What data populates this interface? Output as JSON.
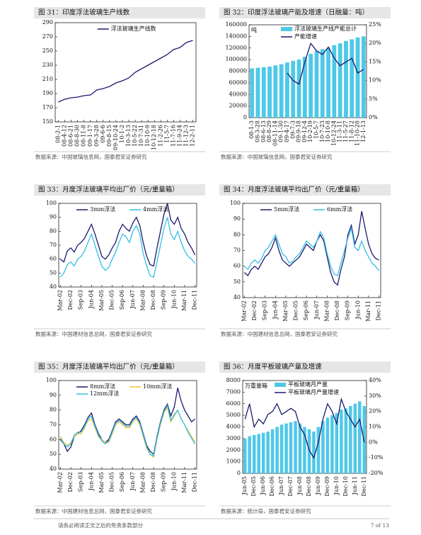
{
  "chart_data": [
    {
      "type": "line",
      "title": "图 31：印度浮法玻璃生产线数",
      "source": "数据来源：中国玻璃信息网，国泰君安证券研究",
      "legend": "top",
      "categories": [
        "08-2-1",
        "08-4-12",
        "08-6-21",
        "08-8-30",
        "08-11-8",
        "09-1-17",
        "09-3-28",
        "09-6-6",
        "09-8-15",
        "09-10-24",
        "10-1-2",
        "10-3-13",
        "10-5-22",
        "10-7-31",
        "10-10-9",
        "10-12-18",
        "11-2-26",
        "11-5-7",
        "11-7-16",
        "11-9-24",
        "11-12-3",
        "12-2-11"
      ],
      "series": [
        {
          "name": "浮法玻璃生产线数",
          "color": "#1a1a6e",
          "type": "line",
          "values": [
            178,
            182,
            184,
            185,
            187,
            188,
            195,
            197,
            200,
            205,
            208,
            212,
            220,
            225,
            230,
            235,
            240,
            245,
            252,
            255,
            262,
            265
          ]
        }
      ],
      "ylim": [
        150,
        290
      ],
      "yticks": [
        150,
        170,
        190,
        210,
        230,
        250,
        270,
        290
      ]
    },
    {
      "type": "combo",
      "title": "图 32：印度浮法玻璃产能及增速（日融量：吨）",
      "source": "数据来源：中国玻璃信息网，国泰君安证券研究",
      "legend": "top-left",
      "annotation": "吨",
      "categories": [
        "08-1-3",
        "08-3-28",
        "08-6-13",
        "08-8-29",
        "08-11-14",
        "09-1-30",
        "09-4-17",
        "09-7-3",
        "09-9-18",
        "09-12-4",
        "10-2-19",
        "10-5-7",
        "10-7-23",
        "10-10-8",
        "10-12-24",
        "11-3-11",
        "11-5-27",
        "11-8-12",
        "11-10-28",
        "12-1-13"
      ],
      "series": [
        {
          "name": "浮法玻璃生产线产能总计",
          "color": "#4fc8e8",
          "type": "bar",
          "values": [
            85000,
            86000,
            87000,
            88000,
            90000,
            92000,
            95000,
            98000,
            100000,
            105000,
            110000,
            115000,
            118000,
            120000,
            125000,
            128000,
            132000,
            135000,
            138000,
            140000
          ]
        },
        {
          "name": "产能增速",
          "color": "#1a1a6e",
          "type": "line",
          "axis": "y2",
          "values": [
            null,
            null,
            null,
            null,
            null,
            null,
            12,
            10,
            9,
            15,
            20,
            18,
            17,
            19,
            16,
            14,
            15,
            16,
            12,
            13
          ]
        }
      ],
      "ylim": [
        0,
        160000
      ],
      "yticks": [
        0,
        20000,
        40000,
        60000,
        80000,
        100000,
        120000,
        140000,
        160000
      ],
      "y2lim": [
        0,
        25
      ],
      "y2ticks": [
        {
          "value": 0,
          "label": "0%"
        },
        {
          "value": 5,
          "label": "5%"
        },
        {
          "value": 10,
          "label": "10%"
        },
        {
          "value": 15,
          "label": "15%"
        },
        {
          "value": 20,
          "label": "20%"
        },
        {
          "value": 25,
          "label": "25%"
        }
      ]
    },
    {
      "type": "line",
      "title": "图 33：月度浮法玻璃平均出厂价（元/重量箱）",
      "source": "数据来源：中国建材信息总网，国泰君安证券研究",
      "legend": "top",
      "categories": [
        "Mar-02",
        null,
        null,
        "Dec-02",
        null,
        null,
        "Sep-03",
        null,
        null,
        "Jun-04",
        null,
        null,
        "Mar-05",
        null,
        null,
        "Dec-05",
        null,
        null,
        "Sep-06",
        null,
        null,
        "Jun-07",
        null,
        null,
        "Mar-08",
        null,
        null,
        "Dec-08",
        null,
        null,
        "Sep-09",
        null,
        null,
        "Jun-10",
        null,
        null,
        "Mar-11",
        null,
        null,
        "Dec-11"
      ],
      "series": [
        {
          "name": "3mm浮法",
          "color": "#1a1a6e",
          "type": "line",
          "values": [
            60,
            58,
            66,
            68,
            65,
            70,
            72,
            75,
            80,
            85,
            78,
            70,
            62,
            60,
            63,
            68,
            72,
            80,
            85,
            82,
            80,
            86,
            90,
            84,
            72,
            62,
            56,
            55,
            68,
            80,
            92,
            100,
            88,
            85,
            90,
            82,
            78,
            72,
            68,
            63
          ]
        },
        {
          "name": "4mm浮法",
          "color": "#33bfe8",
          "type": "line",
          "values": [
            47,
            50,
            56,
            58,
            55,
            60,
            62,
            66,
            72,
            78,
            70,
            62,
            55,
            52,
            54,
            60,
            65,
            72,
            78,
            76,
            72,
            80,
            84,
            78,
            64,
            55,
            48,
            47,
            58,
            70,
            82,
            90,
            78,
            74,
            80,
            72,
            66,
            62,
            60,
            57
          ]
        }
      ],
      "ylim": [
        40,
        100
      ],
      "yticks": [
        40,
        50,
        60,
        70,
        80,
        90,
        100
      ]
    },
    {
      "type": "line",
      "title": "图 34：月度浮法玻璃平均出厂价（元/重量箱）",
      "source": "数据来源：中国建材信息总网，国泰君安证券研究",
      "legend": "top",
      "categories": [
        "Mar-02",
        null,
        null,
        "Dec-02",
        null,
        null,
        "Sep-03",
        null,
        null,
        "Jun-04",
        null,
        null,
        "Mar-05",
        null,
        null,
        "Dec-05",
        null,
        null,
        "Sep-06",
        null,
        null,
        "Jun-07",
        null,
        null,
        "Mar-08",
        null,
        null,
        "Dec-08",
        null,
        null,
        "Sep-09",
        null,
        null,
        "Jun-10",
        null,
        null,
        "Mar-11",
        null,
        null,
        "Dec-11"
      ],
      "series": [
        {
          "name": "5mm浮法",
          "color": "#1a1a6e",
          "type": "line",
          "values": [
            56,
            54,
            58,
            60,
            58,
            62,
            66,
            68,
            72,
            78,
            70,
            64,
            62,
            60,
            62,
            64,
            66,
            70,
            74,
            72,
            70,
            76,
            80,
            76,
            66,
            56,
            50,
            48,
            58,
            66,
            80,
            86,
            74,
            80,
            95,
            84,
            74,
            68,
            65,
            64
          ]
        },
        {
          "name": "6mm浮法",
          "color": "#33bfe8",
          "type": "line",
          "values": [
            60,
            58,
            62,
            64,
            62,
            65,
            70,
            72,
            76,
            80,
            74,
            68,
            66,
            62,
            63,
            66,
            68,
            72,
            76,
            74,
            72,
            76,
            82,
            78,
            68,
            60,
            55,
            54,
            62,
            70,
            78,
            84,
            72,
            70,
            76,
            70,
            66,
            62,
            60,
            57
          ]
        }
      ],
      "ylim": [
        40,
        100
      ],
      "yticks": [
        40,
        50,
        60,
        70,
        80,
        90,
        100
      ]
    },
    {
      "type": "line",
      "title": "图 35：月度浮法玻璃平均出厂价（元/重量箱）",
      "source": "数据来源：中国建材信息总网，国泰君安证券研究",
      "legend": "top",
      "categories": [
        "Mar-02",
        null,
        null,
        "Dec-02",
        null,
        null,
        "Sep-03",
        null,
        null,
        "Jun-04",
        null,
        null,
        "Mar-05",
        null,
        null,
        "Dec-05",
        null,
        null,
        "Sep-06",
        null,
        null,
        "Jun-07",
        null,
        null,
        "Mar-08",
        null,
        null,
        "Dec-08",
        null,
        null,
        "Sep-09",
        null,
        null,
        "Jun-10",
        null,
        null,
        "Mar-11",
        null,
        null,
        "Dec-11"
      ],
      "series": [
        {
          "name": "8mm浮法",
          "color": "#1a1a6e",
          "type": "line",
          "values": [
            60,
            57,
            52,
            55,
            62,
            64,
            66,
            70,
            75,
            78,
            70,
            64,
            60,
            58,
            60,
            66,
            72,
            74,
            72,
            70,
            70,
            74,
            76,
            72,
            64,
            56,
            52,
            50,
            62,
            72,
            80,
            84,
            76,
            82,
            95,
            86,
            80,
            76,
            72,
            74
          ]
        },
        {
          "name": "10mm浮法",
          "color": "#f2c230",
          "type": "line",
          "values": [
            62,
            58,
            56,
            58,
            62,
            64,
            64,
            68,
            73,
            74,
            68,
            62,
            60,
            58,
            58,
            64,
            70,
            72,
            70,
            68,
            68,
            72,
            74,
            70,
            62,
            54,
            50,
            48,
            60,
            70,
            78,
            82,
            72,
            76,
            80,
            74,
            70,
            66,
            62,
            58
          ]
        },
        {
          "name": "12mm浮法",
          "color": "#33bfe8",
          "type": "line",
          "values": [
            61,
            57,
            55,
            57,
            63,
            65,
            65,
            69,
            74,
            76,
            69,
            63,
            59,
            57,
            59,
            65,
            71,
            73,
            71,
            69,
            69,
            73,
            75,
            71,
            63,
            55,
            50,
            49,
            61,
            71,
            79,
            83,
            73,
            77,
            80,
            74,
            70,
            65,
            61,
            57
          ]
        }
      ],
      "ylim": [
        40,
        100
      ],
      "yticks": [
        40,
        50,
        60,
        70,
        80,
        90,
        100
      ]
    },
    {
      "type": "combo",
      "title": "图 36：月度平板玻璃产量及增速",
      "source": "数据来源：统计局，国泰君安证券研究",
      "legend": "top-left",
      "annotation": "万重量箱",
      "categories": [
        "Jun-05",
        null,
        "Dec-05",
        null,
        "Jun-06",
        null,
        "Dec-06",
        null,
        "Jun-07",
        null,
        "Dec-07",
        null,
        "Jun-08",
        null,
        "Dec-08",
        null,
        "Jun-09",
        null,
        "Dec-09",
        null,
        "Jun-10",
        null,
        "Dec-10",
        null,
        "Jun-11",
        null,
        "Dec-11"
      ],
      "series": [
        {
          "name": "平板玻璃月产量",
          "color": "#4fc8e8",
          "type": "bar",
          "values": [
            3000,
            3200,
            3300,
            3400,
            3500,
            3600,
            3800,
            4000,
            4200,
            4300,
            4400,
            4500,
            4300,
            4000,
            3800,
            3600,
            4000,
            4500,
            4800,
            5000,
            5200,
            5500,
            5600,
            5800,
            6000,
            6200,
            5800
          ]
        },
        {
          "name": "平板玻璃月产量增速",
          "color": "#1a1a6e",
          "type": "line",
          "axis": "y2",
          "values": [
            15,
            25,
            10,
            15,
            12,
            18,
            20,
            25,
            18,
            20,
            22,
            20,
            10,
            5,
            -5,
            -10,
            0,
            15,
            25,
            20,
            12,
            28,
            20,
            15,
            10,
            15,
            0
          ]
        }
      ],
      "ylim": [
        0,
        8000
      ],
      "yticks": [
        0,
        1000,
        2000,
        3000,
        4000,
        5000,
        6000,
        7000,
        8000
      ],
      "y2lim": [
        -20,
        40
      ],
      "y2ticks": [
        {
          "value": -20,
          "label": "-20%"
        },
        {
          "value": -10,
          "label": "-10%"
        },
        {
          "value": 0,
          "label": "0%"
        },
        {
          "value": 10,
          "label": "10%"
        },
        {
          "value": 20,
          "label": "20%"
        },
        {
          "value": 30,
          "label": "30%"
        },
        {
          "value": 40,
          "label": "40%"
        }
      ]
    }
  ],
  "footer": {
    "disclaimer": "请务必阅读正文之后的免责条款部分",
    "page": "7 of 13"
  }
}
